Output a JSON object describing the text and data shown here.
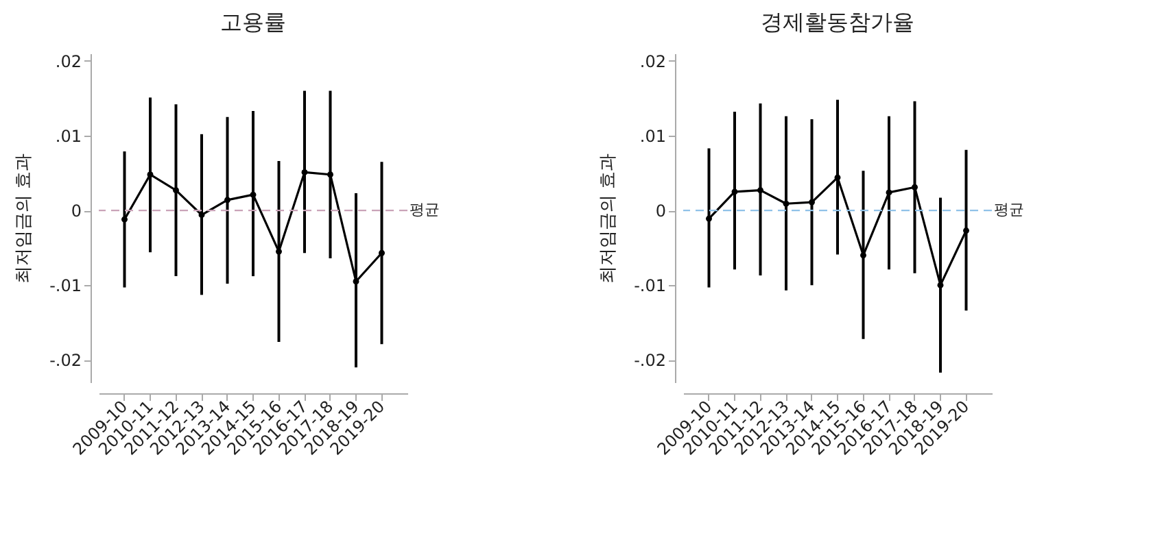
{
  "chart_data": [
    {
      "type": "line",
      "title": "고용률",
      "ylabel": "최저임금의 효과",
      "categories": [
        "2009-10",
        "2010-11",
        "2011-12",
        "2012-13",
        "2013-14",
        "2014-15",
        "2015-16",
        "2016-17",
        "2017-18",
        "2018-19",
        "2019-20"
      ],
      "series": [
        {
          "color": "#000000",
          "values": [
            -0.0012,
            0.0048,
            0.0027,
            -0.0006,
            0.0014,
            0.0021,
            -0.0055,
            0.0051,
            0.0048,
            -0.0095,
            -0.0057
          ],
          "errors": [
            [
              -0.0103,
              0.0079
            ],
            [
              -0.0056,
              0.0151
            ],
            [
              -0.0088,
              0.0142
            ],
            [
              -0.0113,
              0.0102
            ],
            [
              -0.0098,
              0.0125
            ],
            [
              -0.0088,
              0.0133
            ],
            [
              -0.0176,
              0.0066
            ],
            [
              -0.0057,
              0.016
            ],
            [
              -0.0064,
              0.016
            ],
            [
              -0.021,
              0.0023
            ],
            [
              -0.0179,
              0.0065
            ]
          ]
        }
      ],
      "ylim": [
        -0.023,
        0.021
      ],
      "yticks": [
        {
          "value": -0.02,
          "label": "-.02"
        },
        {
          "value": -0.01,
          "label": "-.01"
        },
        0,
        {
          "value": 0.01,
          "label": ".01"
        },
        {
          "value": 0.02,
          "label": ".02"
        }
      ],
      "ref_lines": [
        {
          "axis": "y",
          "value": 0,
          "label": "평균",
          "color": "#c9a3b8",
          "line_style": "dashed"
        }
      ],
      "marker": "circle",
      "grid": false
    },
    {
      "type": "line",
      "title": "경제활동참가율",
      "ylabel": "최저임금의 효과",
      "categories": [
        "2009-10",
        "2010-11",
        "2011-12",
        "2012-13",
        "2013-14",
        "2014-15",
        "2015-16",
        "2016-17",
        "2017-18",
        "2018-19",
        "2019-20"
      ],
      "series": [
        {
          "color": "#000000",
          "values": [
            -0.0011,
            0.0025,
            0.0027,
            0.0009,
            0.0011,
            0.0044,
            -0.006,
            0.0024,
            0.0031,
            -0.01,
            -0.0027
          ],
          "errors": [
            [
              -0.0103,
              0.0083
            ],
            [
              -0.0079,
              0.0132
            ],
            [
              -0.0087,
              0.0143
            ],
            [
              -0.0107,
              0.0126
            ],
            [
              -0.01,
              0.0122
            ],
            [
              -0.0059,
              0.0148
            ],
            [
              -0.0172,
              0.0053
            ],
            [
              -0.0079,
              0.0126
            ],
            [
              -0.0084,
              0.0146
            ],
            [
              -0.0217,
              0.0017
            ],
            [
              -0.0134,
              0.0081
            ]
          ]
        }
      ],
      "ylim": [
        -0.023,
        0.021
      ],
      "yticks": [
        {
          "value": -0.02,
          "label": "-.02"
        },
        {
          "value": -0.01,
          "label": "-.01"
        },
        0,
        {
          "value": 0.01,
          "label": ".01"
        },
        {
          "value": 0.02,
          "label": ".02"
        }
      ],
      "ref_lines": [
        {
          "axis": "y",
          "value": 0,
          "label": "평균",
          "color": "#8fc1e8",
          "line_style": "dashed"
        }
      ],
      "marker": "circle",
      "grid": false
    }
  ]
}
